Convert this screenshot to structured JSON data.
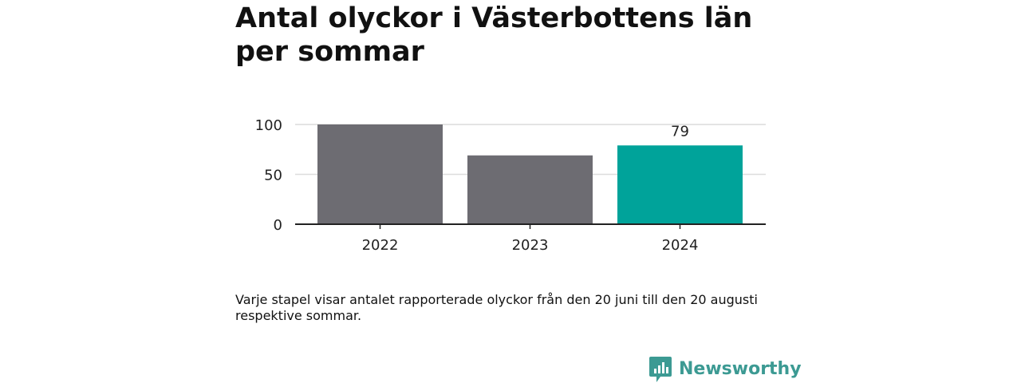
{
  "title": "Antal olyckor i Västerbottens län per sommar",
  "caption": "Varje stapel visar antalet rapporterade olyckor från den 20 juni till den 20 augusti respektive sommar.",
  "brand": {
    "name": "Newsworthy",
    "icon": "newsworthy-logo-icon",
    "color": "#3c9a93"
  },
  "chart_data": {
    "type": "bar",
    "title": "Antal olyckor i Västerbottens län per sommar",
    "xlabel": "",
    "ylabel": "",
    "categories": [
      "2022",
      "2023",
      "2024"
    ],
    "values": [
      100,
      69,
      79
    ],
    "colors": [
      "#6d6c72",
      "#6d6c72",
      "#00a39a"
    ],
    "ylim": [
      0,
      100
    ],
    "yticks": [
      0,
      50,
      100
    ],
    "grid": true,
    "data_labels": [
      {
        "category": "2024",
        "text": "79"
      }
    ]
  }
}
